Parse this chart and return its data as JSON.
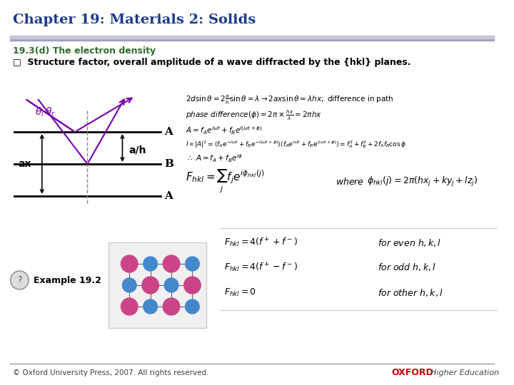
{
  "title": "Chapter 19: Materials 2: Solids",
  "title_color": "#1a3a8c",
  "title_fontsize": 14,
  "subtitle": "19.3(d) The electron density",
  "subtitle_color": "#2e6b2e",
  "subtitle_fontsize": 9,
  "bullet_text": "□  Structure factor, overall amplitude of a wave diffracted by the {hkl} planes.",
  "bullet_fontsize": 9,
  "bullet_color": "#000000",
  "header_line_color": "#a0a0c0",
  "bg_color": "#ffffff",
  "footer_text": "© Oxford University Press, 2007. All rights reserved.",
  "footer_color": "#404040",
  "oxford_color": "#cc0000",
  "formula_color": "#000000",
  "diagram_line_color": "#000000",
  "arrow_color": "#7700aa",
  "theta_color": "#7700aa",
  "label_A_color": "#000000",
  "label_B_color": "#000000"
}
